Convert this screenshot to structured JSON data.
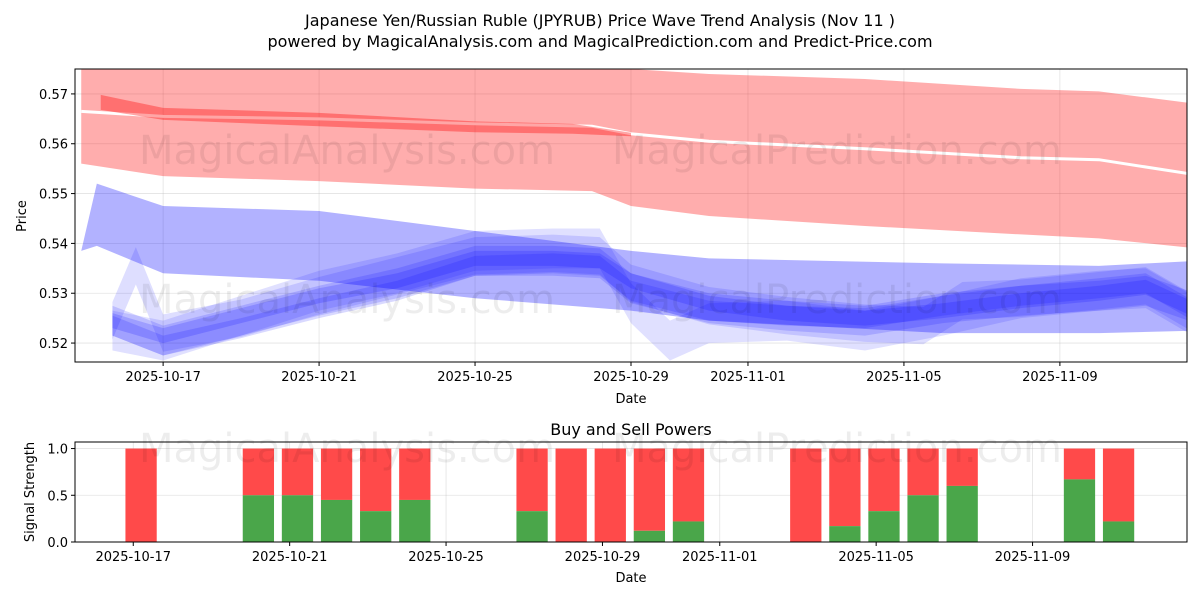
{
  "title_line1": "Japanese Yen/Russian Ruble (JPYRUB) Price Wave Trend Analysis (Nov 11 )",
  "title_line2": "powered by MagicalAnalysis.com and MagicalPrediction.com and Predict-Price.com",
  "watermarks": [
    "MagicalAnalysis.com",
    "MagicalPrediction.com"
  ],
  "colors": {
    "sell": "#ff4a4a",
    "buy": "#4aa64a",
    "red_band": "#ff0000",
    "blue_band": "#0000ff"
  },
  "chart_data": [
    {
      "type": "area",
      "title": "",
      "xlabel": "Date",
      "ylabel": "Price",
      "x_unit": "days since 2025-10-17",
      "xlim": [
        -2.26,
        26.26
      ],
      "ylim": [
        0.5162,
        0.575
      ],
      "xticks": [
        {
          "x": 0,
          "label": "2025-10-17"
        },
        {
          "x": 4,
          "label": "2025-10-21"
        },
        {
          "x": 8,
          "label": "2025-10-25"
        },
        {
          "x": 12,
          "label": "2025-10-29"
        },
        {
          "x": 15,
          "label": "2025-11-01"
        },
        {
          "x": 19,
          "label": "2025-11-05"
        },
        {
          "x": 23,
          "label": "2025-11-09"
        }
      ],
      "yticks": [
        {
          "y": 0.52,
          "label": "0.52"
        },
        {
          "y": 0.53,
          "label": "0.53"
        },
        {
          "y": 0.54,
          "label": "0.54"
        },
        {
          "y": 0.55,
          "label": "0.55"
        },
        {
          "y": 0.56,
          "label": "0.56"
        },
        {
          "y": 0.57,
          "label": "0.57"
        }
      ],
      "grid": true,
      "bands": [
        {
          "name": "red-outer",
          "color": "red",
          "opacity": 0.32,
          "x": [
            -2.1,
            0,
            4,
            8,
            11,
            12,
            14,
            18,
            22,
            24,
            26.5
          ],
          "upper": [
            0.578,
            0.577,
            0.577,
            0.576,
            0.576,
            0.575,
            0.574,
            0.573,
            0.571,
            0.5705,
            0.568
          ],
          "lower": [
            0.556,
            0.5535,
            0.5525,
            0.551,
            0.5505,
            0.5475,
            0.5455,
            0.5435,
            0.5418,
            0.541,
            0.539
          ]
        },
        {
          "name": "red-upper-secondary",
          "color": "red",
          "opacity": 0.32,
          "x": [
            -2.1,
            0,
            4,
            8,
            11,
            12,
            14,
            18,
            22,
            24,
            26.3
          ],
          "upper": [
            0.5665,
            0.5655,
            0.565,
            0.564,
            0.5635,
            0.562,
            0.5605,
            0.559,
            0.5572,
            0.5568,
            0.554
          ],
          "lower": [
            0.5665,
            0.5655,
            0.565,
            0.564,
            0.5635,
            0.562,
            0.5605,
            0.559,
            0.5572,
            0.5568,
            0.554
          ]
        },
        {
          "name": "red-mid",
          "color": "red",
          "opacity": 0.35,
          "x": [
            -1.6,
            0,
            4,
            8,
            10.5,
            12
          ],
          "upper": [
            0.5698,
            0.5672,
            0.5662,
            0.5645,
            0.564,
            0.5622
          ],
          "lower": [
            0.5668,
            0.5648,
            0.5635,
            0.5623,
            0.562,
            0.5615
          ]
        },
        {
          "name": "blue-outer",
          "color": "blue",
          "opacity": 0.3,
          "x": [
            -2.1,
            -1.7,
            0,
            4,
            8,
            12,
            14,
            20,
            24,
            26.5
          ],
          "upper": [
            0.5385,
            0.552,
            0.5475,
            0.5465,
            0.5425,
            0.5385,
            0.537,
            0.536,
            0.5355,
            0.5365
          ],
          "lower": [
            0.5385,
            0.5395,
            0.534,
            0.5325,
            0.529,
            0.5265,
            0.5245,
            0.522,
            0.522,
            0.5225
          ]
        },
        {
          "name": "blue-wave-1",
          "color": "blue",
          "opacity": 0.13,
          "x": [
            -1.3,
            -0.7,
            0,
            2,
            4,
            6,
            8,
            10,
            11.2,
            12,
            14,
            16,
            18,
            19.5,
            20.5,
            22,
            24,
            25.2,
            26.3
          ],
          "center": [
            0.5245,
            0.5355,
            0.522,
            0.525,
            0.5295,
            0.5335,
            0.5375,
            0.538,
            0.5375,
            0.532,
            0.5275,
            0.5255,
            0.524,
            0.5235,
            0.5285,
            0.529,
            0.5305,
            0.5315,
            0.5265
          ],
          "width": 0.0075
        },
        {
          "name": "blue-wave-2",
          "color": "blue",
          "opacity": 0.15,
          "x": [
            -1.3,
            0,
            2,
            4,
            6,
            8,
            10,
            11.2,
            12,
            14,
            16,
            18,
            20,
            22,
            24,
            25.2,
            26.3
          ],
          "center": [
            0.5245,
            0.5205,
            0.5245,
            0.5285,
            0.532,
            0.5365,
            0.5365,
            0.536,
            0.531,
            0.527,
            0.5255,
            0.5245,
            0.527,
            0.5285,
            0.5295,
            0.5305,
            0.5275
          ],
          "width": 0.006
        },
        {
          "name": "blue-wave-3",
          "color": "blue",
          "opacity": 0.15,
          "x": [
            -1.3,
            0,
            2,
            4,
            6,
            8,
            10,
            11.2,
            12,
            14,
            16,
            18,
            20,
            22,
            24,
            25.2,
            26.3
          ],
          "center": [
            0.5235,
            0.5195,
            0.523,
            0.527,
            0.5305,
            0.5355,
            0.536,
            0.5355,
            0.5305,
            0.5265,
            0.5255,
            0.525,
            0.5275,
            0.5295,
            0.531,
            0.532,
            0.527
          ],
          "width": 0.004
        },
        {
          "name": "blue-wave-4",
          "color": "blue",
          "opacity": 0.12,
          "x": [
            -1.3,
            0,
            2,
            4,
            6,
            8,
            10,
            11.2,
            12,
            13,
            14,
            16,
            18,
            20,
            22,
            24,
            25.2,
            26.3
          ],
          "center": [
            0.5225,
            0.5205,
            0.5255,
            0.5305,
            0.534,
            0.5385,
            0.539,
            0.539,
            0.528,
            0.5205,
            0.524,
            0.5245,
            0.5225,
            0.5255,
            0.529,
            0.5305,
            0.531,
            0.526
          ],
          "width": 0.008
        },
        {
          "name": "blue-wave-5",
          "color": "blue",
          "opacity": 0.17,
          "x": [
            -1.3,
            0,
            2,
            4,
            6,
            8,
            10,
            11.2,
            12,
            14,
            16,
            18,
            20,
            22,
            24,
            25.2,
            26.3
          ],
          "center": [
            0.5245,
            0.5215,
            0.5255,
            0.5295,
            0.5325,
            0.537,
            0.537,
            0.5365,
            0.5325,
            0.528,
            0.526,
            0.525,
            0.5265,
            0.5285,
            0.53,
            0.5312,
            0.5272
          ],
          "width": 0.003
        }
      ]
    },
    {
      "type": "bar",
      "title": "Buy and Sell Powers",
      "xlabel": "Date",
      "ylabel": "Signal Strength",
      "x_unit": "days since 2025-10-17",
      "xlim": [
        -1.69,
        26.75
      ],
      "ylim": [
        0,
        1.07
      ],
      "xticks": [
        {
          "x": -0.2,
          "label": "2025-10-17"
        },
        {
          "x": 3.8,
          "label": "2025-10-21"
        },
        {
          "x": 7.8,
          "label": "2025-10-25"
        },
        {
          "x": 11.8,
          "label": "2025-10-29"
        },
        {
          "x": 14.8,
          "label": "2025-11-01"
        },
        {
          "x": 18.8,
          "label": "2025-11-05"
        },
        {
          "x": 22.8,
          "label": "2025-11-09"
        }
      ],
      "yticks": [
        {
          "y": 0,
          "label": "0.0"
        },
        {
          "y": 0.5,
          "label": "0.5"
        },
        {
          "y": 1,
          "label": "1.0"
        }
      ],
      "grid": true,
      "series": [
        {
          "name": "Buy",
          "x": [
            0,
            3,
            4,
            5,
            6,
            7,
            10,
            11,
            12,
            13,
            14,
            17,
            18,
            19,
            20,
            21,
            24,
            25
          ],
          "values": [
            0,
            0.5,
            0.5,
            0.45,
            0.33,
            0.45,
            0.33,
            0,
            0,
            0.12,
            0.22,
            0,
            0.17,
            0.33,
            0.5,
            0.6,
            0.67,
            0.22
          ]
        },
        {
          "name": "Sell",
          "x": [
            0,
            3,
            4,
            5,
            6,
            7,
            10,
            11,
            12,
            13,
            14,
            17,
            18,
            19,
            20,
            21,
            24,
            25
          ],
          "values": [
            1,
            0.5,
            0.5,
            0.55,
            0.67,
            0.55,
            0.67,
            1,
            1,
            0.88,
            0.78,
            1,
            0.83,
            0.67,
            0.5,
            0.4,
            0.33,
            0.78
          ]
        }
      ]
    }
  ]
}
